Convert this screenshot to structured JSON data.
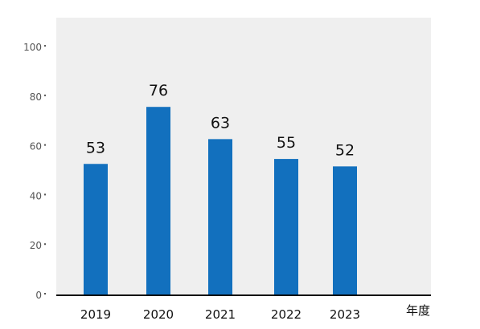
{
  "chart_data": {
    "type": "bar",
    "categories": [
      "2019",
      "2020",
      "2021",
      "2022",
      "2023"
    ],
    "values": [
      53,
      76,
      63,
      55,
      52
    ],
    "title": "",
    "xlabel": "年度",
    "ylabel": "",
    "ylim": [
      0,
      112
    ],
    "yticks": [
      0,
      20,
      40,
      60,
      80,
      100
    ],
    "grid": false,
    "legend": "none",
    "colors": {
      "bar": "#1270be",
      "plot_background": "#efefef",
      "axis_line": "#000000"
    }
  }
}
